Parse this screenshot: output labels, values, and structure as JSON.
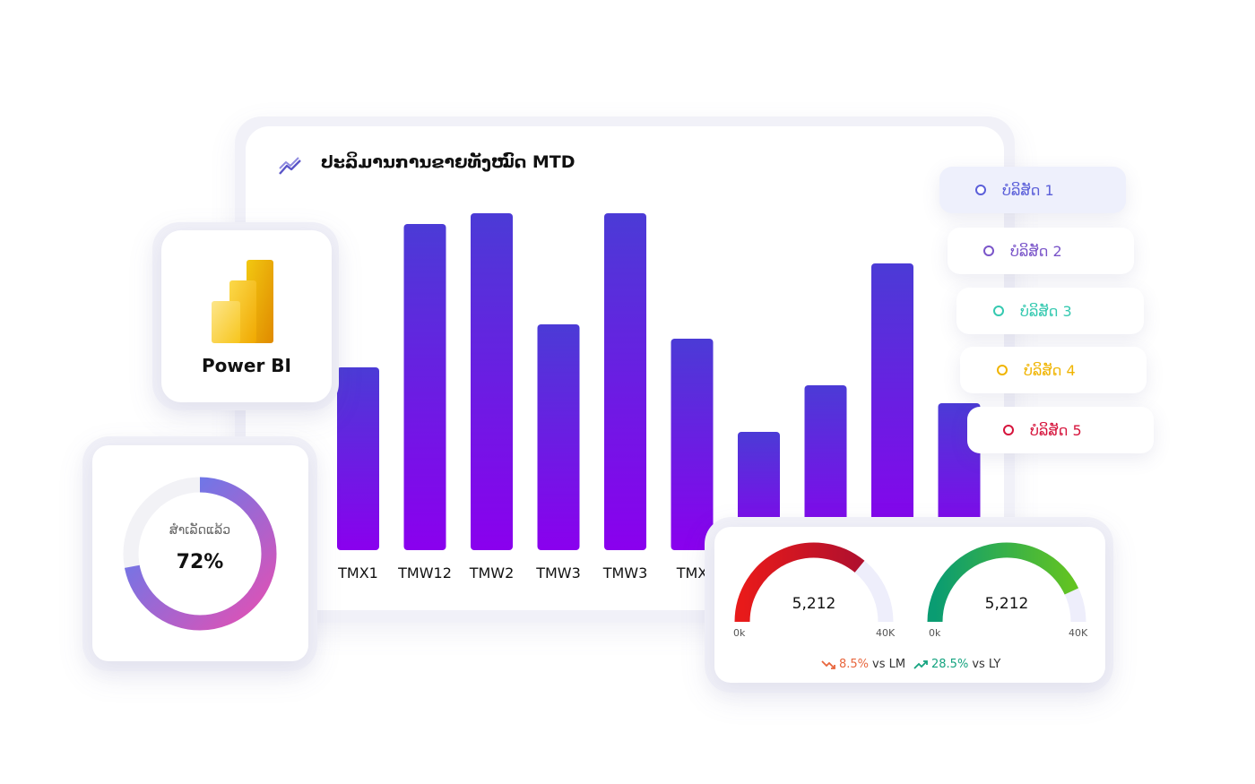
{
  "colors": {
    "bar_top": "#4b3bd6",
    "bar_bottom": "#8a00ee",
    "donut_start": "#e64fb2",
    "donut_end": "#4c82f7",
    "gauge1": "#d8182a",
    "gauge2": "#1aa36f",
    "gauge_track": "#eeeefb"
  },
  "chart_data": [
    {
      "type": "bar",
      "title": "ປະລິມານການຂາຍທັງໝົດ MTD",
      "categories": [
        "TMX1",
        "TMW12",
        "TMW2",
        "TMW3",
        "TMW3",
        "TMX",
        "",
        "",
        "",
        ""
      ],
      "values": [
        51,
        91,
        94,
        63,
        94,
        59,
        33,
        46,
        80,
        41
      ],
      "ylim": [
        0,
        100
      ],
      "grid": false
    },
    {
      "type": "pie",
      "label": "ສຳເລັດແລ້ວ",
      "value_text": "72%",
      "values": [
        72,
        28
      ]
    },
    {
      "type": "gauge",
      "min_label": "0k",
      "max_label": "40K",
      "gauges": [
        {
          "value_text": "5,212",
          "fill": 0.72,
          "color": "#d8182a"
        },
        {
          "value_text": "5,212",
          "fill": 0.86,
          "color": "#1aa36f"
        }
      ],
      "comparisons": [
        {
          "pct": "8.5%",
          "text": "vs LM",
          "direction": "down",
          "color": "#e8663d"
        },
        {
          "pct": "28.5%",
          "text": "vs LY",
          "direction": "up",
          "color": "#14a37f"
        }
      ]
    }
  ],
  "powerbi": {
    "label": "Power BI",
    "icon": "power-bi-logo-icon"
  },
  "legend": [
    {
      "label": "ບໍລິສັດ 1",
      "color": "#5b5fd9",
      "highlighted": true
    },
    {
      "label": "ບໍລິສັດ 2",
      "color": "#7a55c9",
      "highlighted": false
    },
    {
      "label": "ບໍລິສັດ 3",
      "color": "#35c9b0",
      "highlighted": false
    },
    {
      "label": "ບໍລິສັດ 4",
      "color": "#f0b400",
      "highlighted": false
    },
    {
      "label": "ບໍລິສັດ 5",
      "color": "#d6143c",
      "highlighted": false
    }
  ]
}
